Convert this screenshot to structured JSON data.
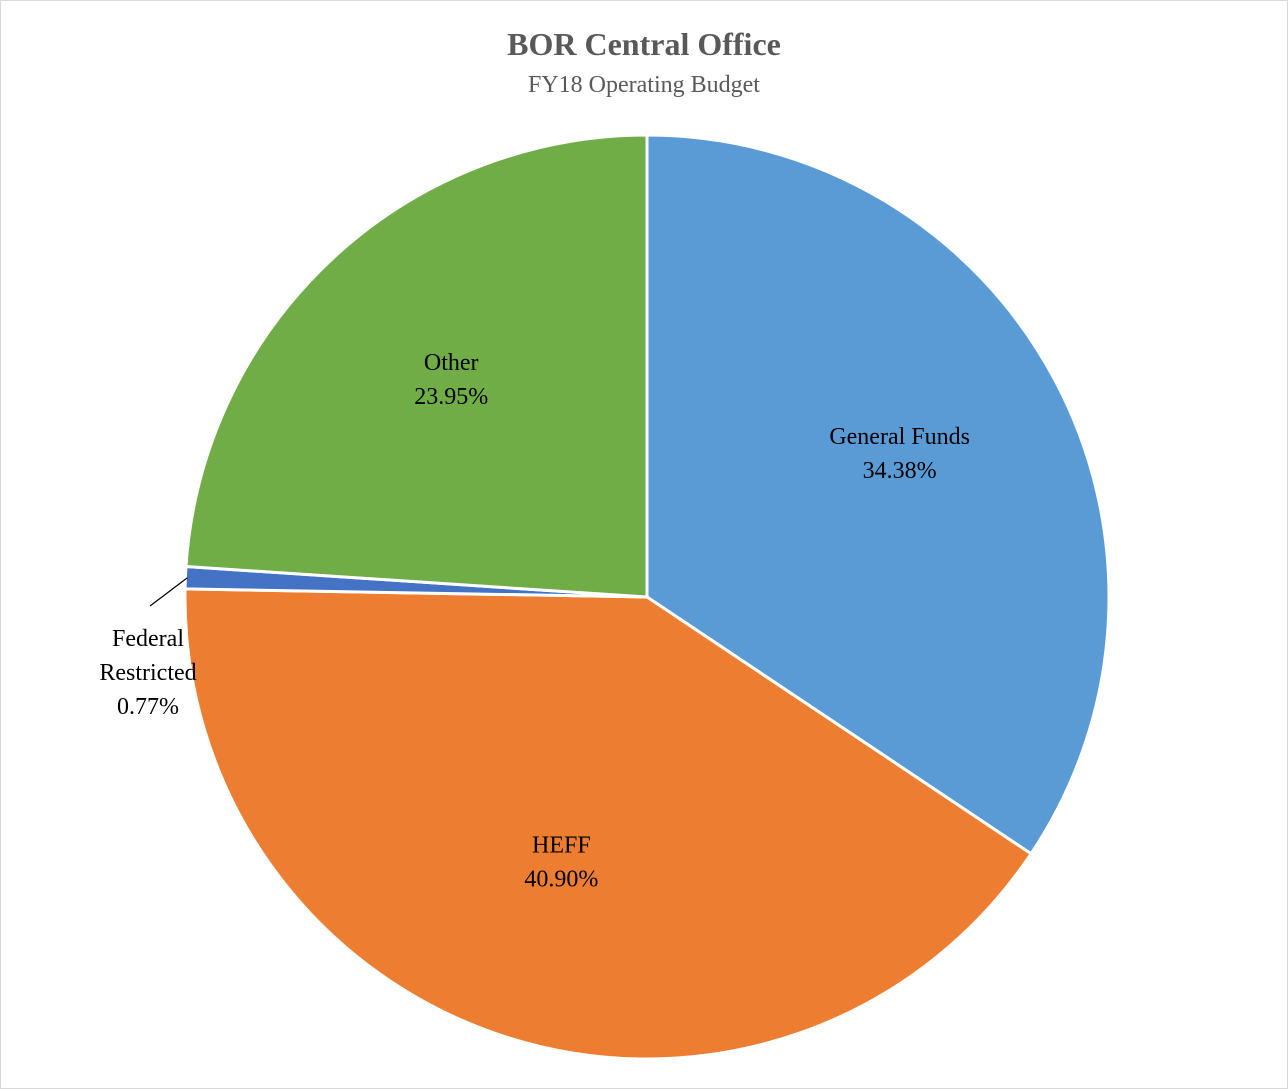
{
  "chart_data": {
    "type": "pie",
    "title": "BOR Central Office",
    "subtitle": "FY18 Operating Budget",
    "slices": [
      {
        "label": "General Funds",
        "label_lines": [
          "General Funds"
        ],
        "value": 34.38,
        "value_label": "34.38%",
        "color": "#5b9bd5",
        "label_placement": "inside"
      },
      {
        "label": "HEFF",
        "label_lines": [
          "HEFF"
        ],
        "value": 40.9,
        "value_label": "40.90%",
        "color": "#ed7d31",
        "label_placement": "inside"
      },
      {
        "label": "Federal Restricted",
        "label_lines": [
          "Federal",
          "Restricted"
        ],
        "value": 0.77,
        "value_label": "0.77%",
        "color": "#4472c4",
        "label_placement": "outside-leader"
      },
      {
        "label": "Other",
        "label_lines": [
          "Other"
        ],
        "value": 23.95,
        "value_label": "23.95%",
        "color": "#70ad47",
        "label_placement": "inside"
      }
    ],
    "start_angle": "12 o'clock",
    "direction": "clockwise",
    "slice_border_color": "#ffffff",
    "legend": "none"
  }
}
